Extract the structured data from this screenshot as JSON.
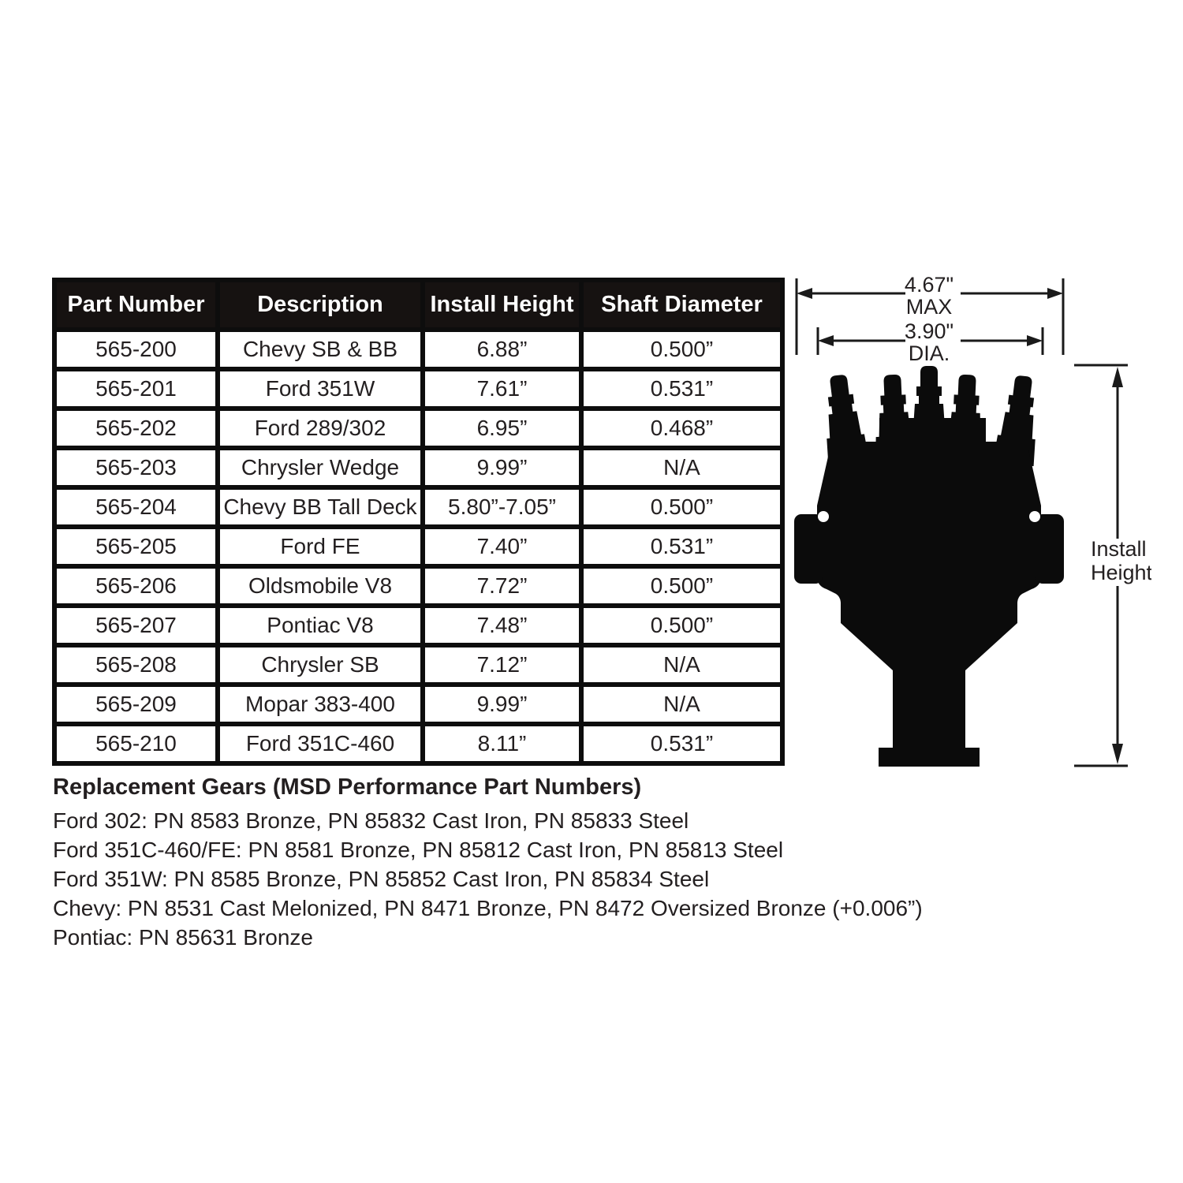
{
  "table": {
    "headers": [
      "Part Number",
      "Description",
      "Install Height",
      "Shaft Diameter"
    ],
    "rows": [
      [
        "565-200",
        "Chevy SB & BB",
        "6.88”",
        "0.500”"
      ],
      [
        "565-201",
        "Ford 351W",
        "7.61”",
        "0.531”"
      ],
      [
        "565-202",
        "Ford 289/302",
        "6.95”",
        "0.468”"
      ],
      [
        "565-203",
        "Chrysler Wedge",
        "9.99”",
        "N/A"
      ],
      [
        "565-204",
        "Chevy BB Tall Deck",
        "5.80”-7.05”",
        "0.500”"
      ],
      [
        "565-205",
        "Ford FE",
        "7.40”",
        "0.531”"
      ],
      [
        "565-206",
        "Oldsmobile V8",
        "7.72”",
        "0.500”"
      ],
      [
        "565-207",
        "Pontiac V8",
        "7.48”",
        "0.500”"
      ],
      [
        "565-208",
        "Chrysler SB",
        "7.12”",
        "N/A"
      ],
      [
        "565-209",
        "Mopar 383-400",
        "9.99”",
        "N/A"
      ],
      [
        "565-210",
        "Ford 351C-460",
        "8.11”",
        "0.531”"
      ]
    ]
  },
  "replacement_gears": {
    "heading": "Replacement Gears (MSD Performance Part Numbers)",
    "lines": [
      "Ford 302: PN 8583 Bronze, PN 85832 Cast Iron, PN 85833 Steel",
      "Ford 351C-460/FE: PN 8581 Bronze, PN 85812 Cast Iron, PN 85813 Steel",
      "Ford 351W: PN 8585 Bronze, PN 85852 Cast Iron, PN 85834 Steel",
      "Chevy: PN 8531 Cast Melonized, PN 8471 Bronze, PN 8472 Oversized Bronze (+0.006”)",
      "Pontiac: PN 85631 Bronze"
    ]
  },
  "diagram": {
    "max_width": {
      "value": "4.67\"",
      "label": "MAX"
    },
    "diameter": {
      "value": "3.90\"",
      "label": "DIA."
    },
    "install_height": {
      "line1": "Install",
      "line2": "Height"
    }
  },
  "colors": {
    "header_background": "#161211",
    "header_text": "#ffffff",
    "body_text": "#231f20",
    "silhouette": "#0b0b0b",
    "page_background": "#ffffff"
  }
}
